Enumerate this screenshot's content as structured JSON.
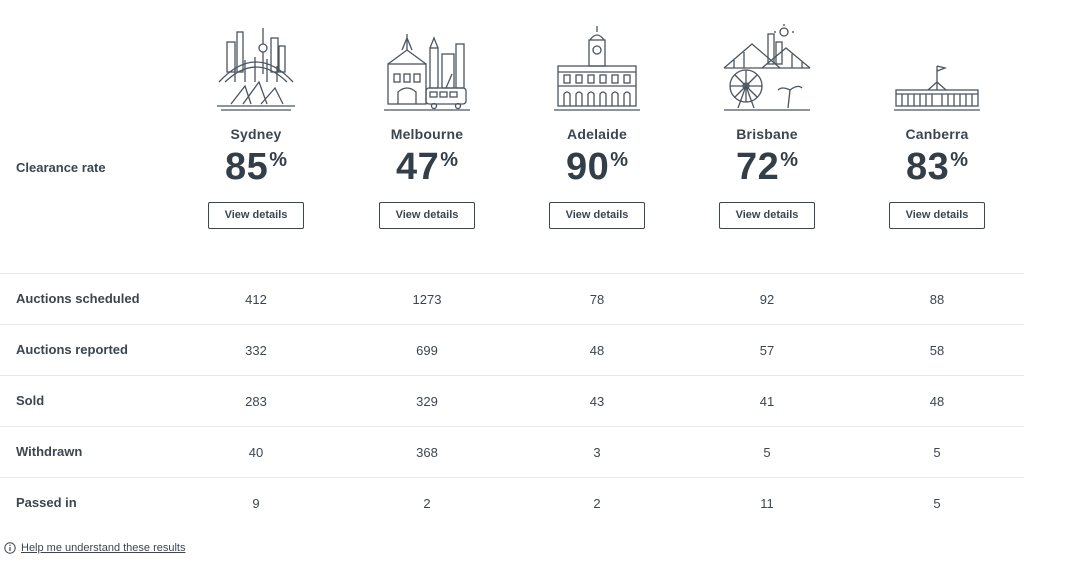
{
  "clearance_label": "Clearance rate",
  "pct_symbol": "%",
  "cities": [
    {
      "name": "Sydney",
      "rate": "85",
      "button": "View details",
      "icon": "sydney-skyline-icon"
    },
    {
      "name": "Melbourne",
      "rate": "47",
      "button": "View details",
      "icon": "melbourne-skyline-icon"
    },
    {
      "name": "Adelaide",
      "rate": "90",
      "button": "View details",
      "icon": "adelaide-town-hall-icon"
    },
    {
      "name": "Brisbane",
      "rate": "72",
      "button": "View details",
      "icon": "brisbane-skyline-icon"
    },
    {
      "name": "Canberra",
      "rate": "83",
      "button": "View details",
      "icon": "canberra-parliament-icon"
    }
  ],
  "rows": [
    {
      "label": "Auctions scheduled",
      "values": [
        "412",
        "1273",
        "78",
        "92",
        "88"
      ]
    },
    {
      "label": "Auctions reported",
      "values": [
        "332",
        "699",
        "48",
        "57",
        "58"
      ]
    },
    {
      "label": "Sold",
      "values": [
        "283",
        "329",
        "43",
        "41",
        "48"
      ]
    },
    {
      "label": "Withdrawn",
      "values": [
        "40",
        "368",
        "3",
        "5",
        "5"
      ]
    },
    {
      "label": "Passed in",
      "values": [
        "9",
        "2",
        "2",
        "11",
        "5"
      ]
    }
  ],
  "help_link": "Help me understand these results",
  "colors": {
    "text": "#333f48",
    "divider": "#e6e8ea",
    "border": "#3b4650"
  }
}
